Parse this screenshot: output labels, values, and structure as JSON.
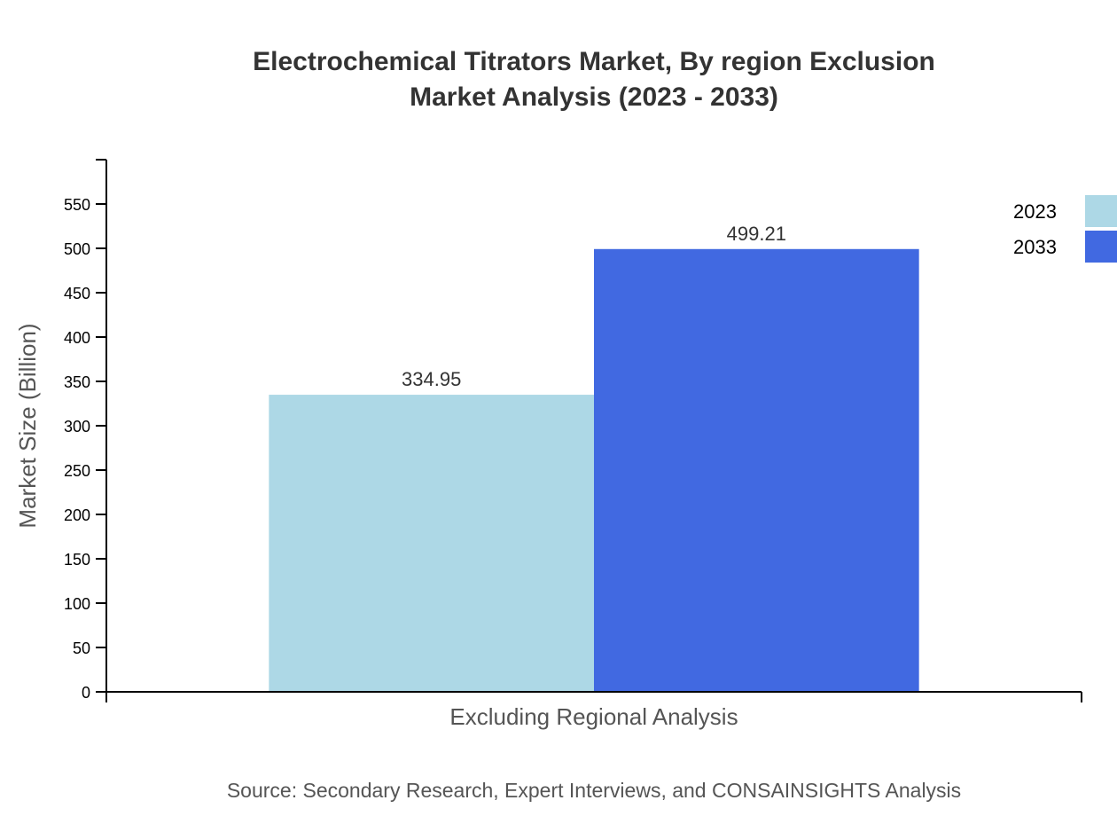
{
  "chart_data": {
    "type": "bar",
    "title": "Electrochemical Titrators Market, By region Exclusion Market Analysis (2023 - 2033)",
    "title_lines": [
      "Electrochemical Titrators Market, By region Exclusion",
      "Market Analysis (2023 - 2033)"
    ],
    "categories": [
      "Excluding Regional Analysis"
    ],
    "series": [
      {
        "name": "2023",
        "values": [
          334.95
        ],
        "color": "#add8e6"
      },
      {
        "name": "2033",
        "values": [
          499.21
        ],
        "color": "#4169e1"
      }
    ],
    "xlabel": "Excluding Regional Analysis",
    "ylabel": "Market Size (Billion)",
    "ylim": [
      0,
      600
    ],
    "yticks": [
      0,
      50,
      100,
      150,
      200,
      250,
      300,
      350,
      400,
      450,
      500,
      550
    ],
    "grid": false,
    "legend_position": "top-right",
    "data_labels": [
      "334.95",
      "499.21"
    ],
    "source": "Source: Secondary Research, Expert Interviews, and CONSAINSIGHTS Analysis"
  }
}
